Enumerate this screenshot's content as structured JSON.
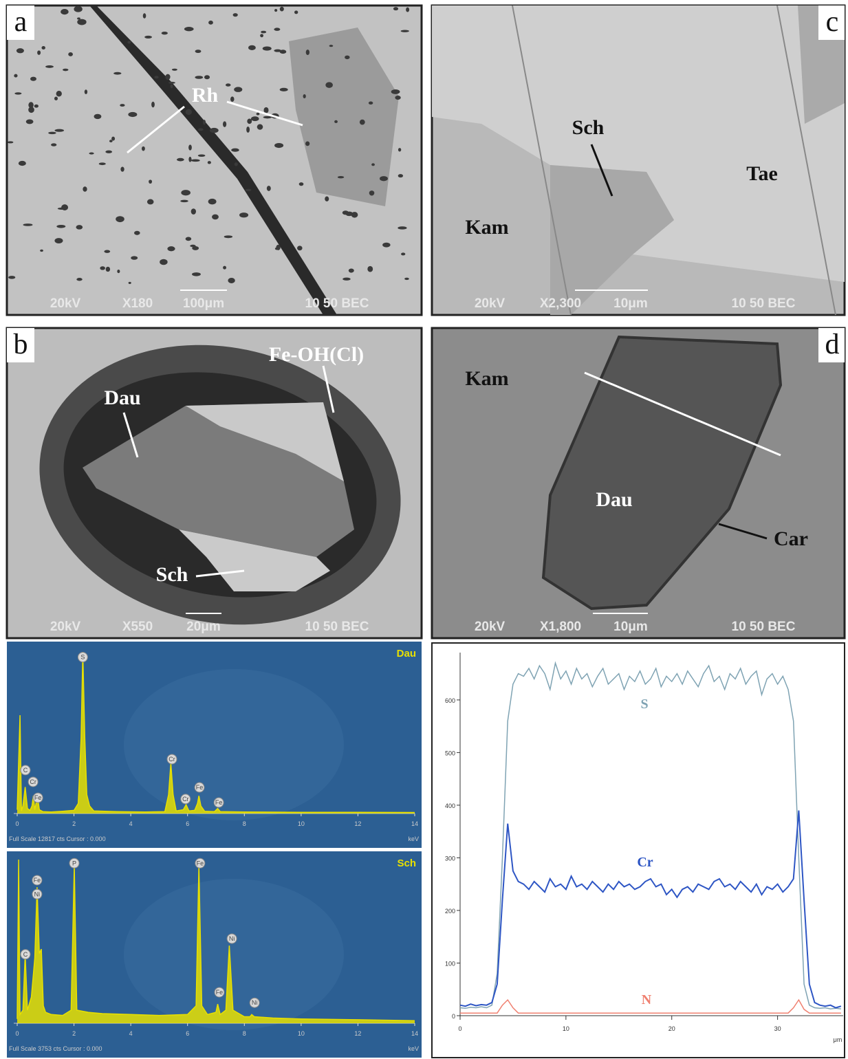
{
  "panels": {
    "a": {
      "label": "a",
      "annotations": [
        "Rh"
      ],
      "footer": [
        "20kV",
        "X180",
        "100μm",
        "10 50 BEC"
      ]
    },
    "c": {
      "label": "c",
      "annotations": [
        "Sch",
        "Tae",
        "Kam"
      ],
      "footer": [
        "20kV",
        "X2,300",
        "10μm",
        "10 50 BEC"
      ]
    },
    "b": {
      "label": "b",
      "annotations": [
        "Fe-OH(Cl)",
        "Dau",
        "Sch"
      ],
      "footer": [
        "20kV",
        "X550",
        "20μm",
        "10 50 BEC"
      ]
    },
    "d": {
      "label": "d",
      "annotations": [
        "Kam",
        "Dau",
        "Car"
      ],
      "footer": [
        "20kV",
        "X1,800",
        "10μm",
        "10 50 BEC"
      ]
    }
  },
  "chart_data": [
    {
      "type": "area",
      "name": "Dau",
      "color": "#e8e000",
      "footer": "Full Scale 12817 cts  Cursor : 0.000",
      "x_label": "keV",
      "xlim": [
        0,
        14
      ],
      "ylim": [
        0,
        12817
      ],
      "xticks": [
        0,
        2,
        4,
        6,
        8,
        10,
        12,
        14
      ],
      "x": [
        0,
        0.1,
        0.15,
        0.2,
        0.28,
        0.36,
        0.45,
        0.52,
        0.57,
        0.62,
        0.67,
        0.72,
        0.78,
        0.9,
        1.2,
        1.6,
        2.0,
        2.15,
        2.25,
        2.31,
        2.38,
        2.45,
        2.55,
        2.7,
        3.5,
        4.5,
        5.2,
        5.33,
        5.41,
        5.49,
        5.6,
        5.85,
        5.95,
        6.05,
        6.25,
        6.35,
        6.4,
        6.47,
        6.6,
        6.95,
        7.06,
        7.15,
        8,
        10,
        12,
        14
      ],
      "values": [
        300,
        7800,
        200,
        600,
        2100,
        400,
        250,
        600,
        1400,
        300,
        900,
        1300,
        300,
        150,
        120,
        180,
        250,
        800,
        6000,
        12817,
        6000,
        1500,
        600,
        200,
        150,
        120,
        150,
        1500,
        4000,
        1500,
        200,
        300,
        700,
        200,
        250,
        800,
        1400,
        600,
        180,
        150,
        400,
        150,
        120,
        100,
        90,
        80
      ],
      "peak_labels": [
        {
          "text": "S",
          "x": 2.31,
          "y": 12400
        },
        {
          "text": "C",
          "x": 0.29,
          "y": 3440
        },
        {
          "text": "Cr",
          "x": 0.56,
          "y": 2510
        },
        {
          "text": "Fe",
          "x": 0.73,
          "y": 1250
        },
        {
          "text": "Cr",
          "x": 5.45,
          "y": 4310
        },
        {
          "text": "Cr",
          "x": 5.93,
          "y": 1150
        },
        {
          "text": "Fe",
          "x": 6.42,
          "y": 2070
        },
        {
          "text": "Fe",
          "x": 7.1,
          "y": 870
        }
      ]
    },
    {
      "type": "area",
      "name": "Sch",
      "color": "#e8e000",
      "footer": "Full Scale 3753 cts  Cursor : 0.000",
      "x_label": "keV",
      "xlim": [
        0,
        14
      ],
      "ylim": [
        0,
        3753
      ],
      "xticks": [
        0,
        2,
        4,
        6,
        8,
        10,
        12,
        14
      ],
      "x": [
        0,
        0.05,
        0.1,
        0.2,
        0.28,
        0.36,
        0.5,
        0.62,
        0.7,
        0.78,
        0.85,
        0.92,
        1.0,
        1.2,
        1.6,
        1.9,
        2.01,
        2.1,
        2.5,
        3,
        4,
        5,
        6,
        6.3,
        6.4,
        6.5,
        6.7,
        7.0,
        7.06,
        7.15,
        7.35,
        7.47,
        7.6,
        8.0,
        8.2,
        8.26,
        8.35,
        9,
        10,
        12,
        14
      ],
      "values": [
        100,
        3753,
        200,
        300,
        1580,
        300,
        600,
        1500,
        3120,
        1600,
        1700,
        400,
        250,
        200,
        180,
        300,
        3630,
        300,
        250,
        220,
        200,
        180,
        200,
        400,
        3630,
        400,
        200,
        250,
        440,
        200,
        300,
        1780,
        300,
        150,
        150,
        200,
        150,
        120,
        100,
        80,
        60
      ],
      "peak_labels": [
        {
          "text": "P",
          "x": 2.01,
          "y": 3670
        },
        {
          "text": "Fe",
          "x": 0.7,
          "y": 3280
        },
        {
          "text": "Ni",
          "x": 0.7,
          "y": 2960
        },
        {
          "text": "C",
          "x": 0.29,
          "y": 1580
        },
        {
          "text": "Fe",
          "x": 6.44,
          "y": 3670
        },
        {
          "text": "Ni",
          "x": 7.56,
          "y": 1940
        },
        {
          "text": "Fe",
          "x": 7.12,
          "y": 710
        },
        {
          "text": "Ni",
          "x": 8.36,
          "y": 470
        }
      ]
    },
    {
      "type": "line",
      "x_label": "μm",
      "xlim": [
        0,
        36.2
      ],
      "ylim": [
        0,
        690
      ],
      "xticks": [
        0,
        10,
        20,
        30
      ],
      "yticks": [
        0,
        100,
        200,
        300,
        400,
        500,
        600
      ],
      "x": [
        0,
        0.5,
        1,
        1.5,
        2,
        2.5,
        3,
        3.5,
        4,
        4.5,
        5,
        5.5,
        6,
        6.5,
        7,
        7.5,
        8,
        8.5,
        9,
        9.5,
        10,
        10.5,
        11,
        11.5,
        12,
        12.5,
        13,
        13.5,
        14,
        14.5,
        15,
        15.5,
        16,
        16.5,
        17,
        17.5,
        18,
        18.5,
        19,
        19.5,
        20,
        20.5,
        21,
        21.5,
        22,
        22.5,
        23,
        23.5,
        24,
        24.5,
        25,
        25.5,
        26,
        26.5,
        27,
        27.5,
        28,
        28.5,
        29,
        29.5,
        30,
        30.5,
        31,
        31.5,
        32,
        32.5,
        33,
        33.5,
        34,
        34.5,
        35,
        35.5,
        36
      ],
      "series": [
        {
          "name": "S",
          "color": "#7fa3b3",
          "values": [
            15,
            14,
            16,
            15,
            17,
            15,
            20,
            80,
            300,
            560,
            630,
            650,
            645,
            660,
            640,
            665,
            650,
            620,
            670,
            640,
            655,
            630,
            660,
            640,
            650,
            625,
            645,
            660,
            630,
            640,
            650,
            620,
            645,
            635,
            655,
            630,
            640,
            660,
            625,
            645,
            635,
            650,
            630,
            655,
            640,
            625,
            650,
            665,
            635,
            645,
            620,
            650,
            640,
            660,
            630,
            645,
            655,
            610,
            640,
            650,
            630,
            645,
            620,
            560,
            300,
            60,
            20,
            15,
            14,
            15,
            13,
            14,
            13
          ]
        },
        {
          "name": "Cr",
          "color": "#2d55c4",
          "values": [
            20,
            18,
            22,
            19,
            21,
            20,
            25,
            60,
            220,
            365,
            275,
            255,
            250,
            240,
            255,
            245,
            235,
            260,
            245,
            250,
            240,
            265,
            245,
            250,
            240,
            255,
            245,
            235,
            250,
            240,
            255,
            245,
            250,
            240,
            245,
            255,
            260,
            245,
            250,
            230,
            240,
            225,
            240,
            245,
            235,
            250,
            245,
            240,
            255,
            260,
            245,
            250,
            240,
            255,
            245,
            235,
            250,
            230,
            245,
            240,
            250,
            235,
            245,
            260,
            390,
            220,
            60,
            25,
            20,
            18,
            20,
            15,
            18
          ]
        },
        {
          "name": "N",
          "color": "#f08070",
          "values": [
            5,
            5,
            5,
            5,
            5,
            5,
            5,
            5,
            20,
            30,
            15,
            5,
            5,
            5,
            5,
            5,
            5,
            5,
            5,
            5,
            5,
            5,
            5,
            5,
            5,
            5,
            5,
            5,
            5,
            5,
            5,
            5,
            5,
            5,
            5,
            5,
            5,
            5,
            5,
            5,
            5,
            5,
            5,
            5,
            5,
            5,
            5,
            5,
            5,
            5,
            5,
            5,
            5,
            5,
            5,
            5,
            5,
            5,
            5,
            5,
            5,
            5,
            5,
            15,
            30,
            12,
            5,
            5,
            5,
            5,
            5,
            5,
            5
          ]
        }
      ]
    }
  ]
}
